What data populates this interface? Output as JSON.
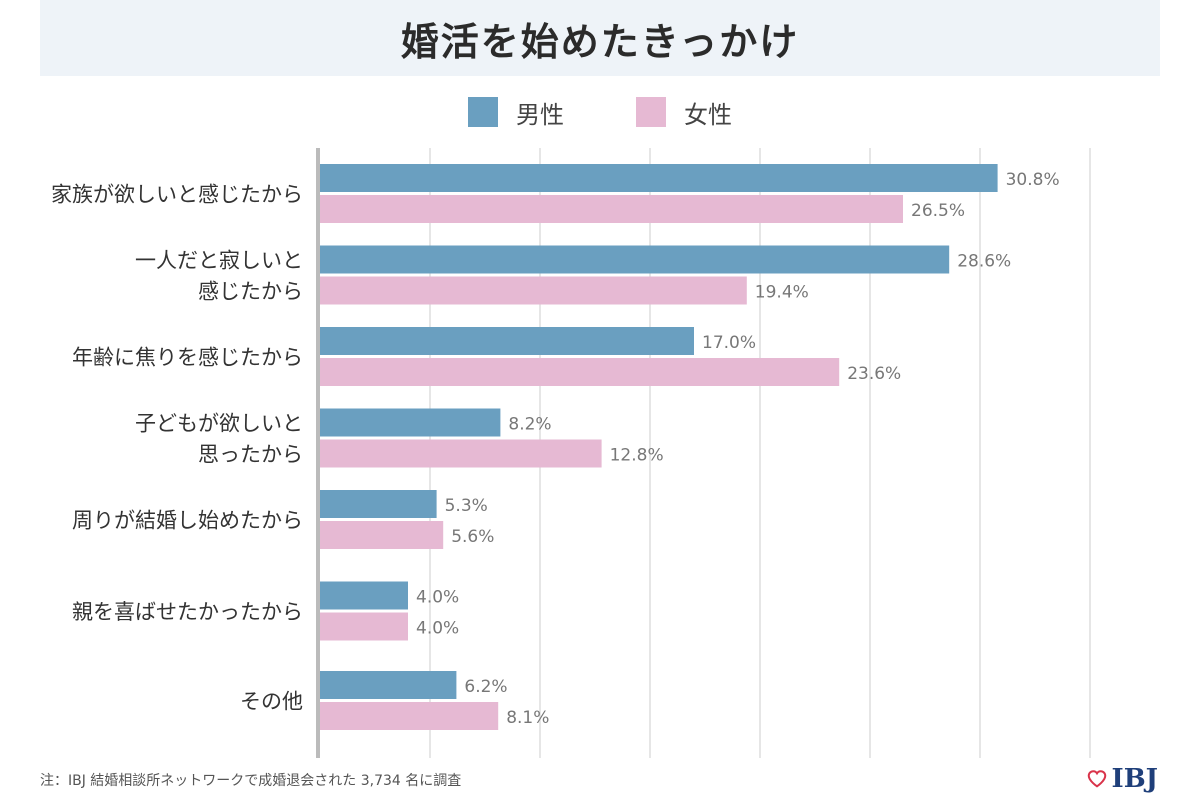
{
  "title": "婚活を始めたきっかけ",
  "legend": {
    "male": "男性",
    "female": "女性"
  },
  "colors": {
    "male": "#6a9fc0",
    "female": "#e6b9d3",
    "grid": "#dddddd",
    "axis": "#bbbbbb",
    "value_label": "#777777",
    "title_bg": "#eef3f8",
    "logo": "#1f3f7a",
    "logo_heart": "#d9334a"
  },
  "chart_data": {
    "type": "bar",
    "orientation": "horizontal",
    "categories": [
      [
        "家族が欲しいと感じたから"
      ],
      [
        "一人だと寂しいと",
        "感じたから"
      ],
      [
        "年齢に焦りを感じたから"
      ],
      [
        "子どもが欲しいと",
        "思ったから"
      ],
      [
        "周りが結婚し始めたから"
      ],
      [
        "親を喜ばせたかったから"
      ],
      [
        "その他"
      ]
    ],
    "series": [
      {
        "name": "男性",
        "values": [
          30.8,
          28.6,
          17.0,
          8.2,
          5.3,
          4.0,
          6.2
        ],
        "labels": [
          "30.8%",
          "28.6%",
          "17.0%",
          "8.2%",
          "5.3%",
          "4.0%",
          "6.2%"
        ]
      },
      {
        "name": "女性",
        "values": [
          26.5,
          19.4,
          23.6,
          12.8,
          5.6,
          4.0,
          8.1
        ],
        "labels": [
          "26.5%",
          "19.4%",
          "23.6%",
          "12.8%",
          "5.6%",
          "4.0%",
          "8.1%"
        ]
      }
    ],
    "xlim": [
      0,
      35
    ],
    "grid": true,
    "gridline_values": [
      5,
      10,
      15,
      20,
      25,
      30,
      35
    ],
    "legend_position": "top-center",
    "value_unit": "%"
  },
  "footnote": "注：IBJ 結婚相談所ネットワークで成婚退会された 3,734 名に調査",
  "logo": {
    "text": "IBJ",
    "icon": "heart-outline-icon"
  }
}
